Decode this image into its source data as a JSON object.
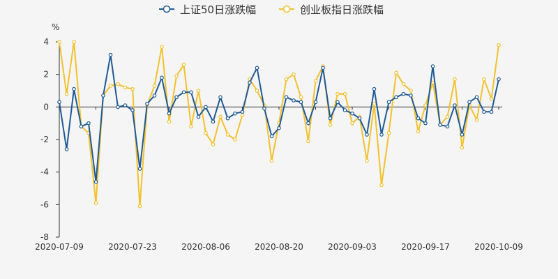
{
  "chart_data": {
    "type": "line",
    "title": "",
    "xlabel": "",
    "ylabel": "%",
    "ylim": [
      -8,
      4
    ],
    "yticks": [
      -8,
      -6,
      -4,
      -2,
      0,
      2,
      4
    ],
    "legend_position": "top-center",
    "x_tick_labels": [
      "2020-07-09",
      "2020-07-23",
      "2020-08-06",
      "2020-08-20",
      "2020-09-03",
      "2020-09-17",
      "2020-10-09"
    ],
    "x_tick_indices": [
      0,
      10,
      20,
      30,
      40,
      50,
      60
    ],
    "series": [
      {
        "name": "上证50日涨跌幅",
        "color": "#1f5a96",
        "values": [
          0.3,
          -2.6,
          1.1,
          -1.2,
          -1.0,
          -4.6,
          0.7,
          3.2,
          0.0,
          0.1,
          -0.2,
          -3.8,
          0.2,
          0.7,
          1.8,
          -0.4,
          0.6,
          0.9,
          0.9,
          -0.6,
          0.0,
          -0.9,
          0.6,
          -0.7,
          -0.4,
          -0.3,
          1.5,
          2.4,
          -0.1,
          -1.8,
          -1.3,
          0.6,
          0.4,
          0.3,
          -1.0,
          0.3,
          2.4,
          -0.7,
          0.3,
          -0.2,
          -0.4,
          -0.7,
          -1.7,
          1.1,
          -1.7,
          0.3,
          0.6,
          0.8,
          0.7,
          -0.7,
          -1.0,
          2.5,
          -1.1,
          -1.2,
          0.1,
          -1.7,
          0.3,
          0.6,
          -0.3,
          -0.3,
          1.7
        ]
      },
      {
        "name": "创业板指日涨跌幅",
        "color": "#f2c12e",
        "values": [
          4.0,
          0.8,
          4.0,
          -1.2,
          -1.6,
          -5.9,
          0.7,
          1.3,
          1.4,
          1.2,
          1.1,
          -6.1,
          0.1,
          1.3,
          3.7,
          -0.9,
          1.9,
          2.6,
          -1.2,
          1.0,
          -1.6,
          -2.3,
          -0.6,
          -1.7,
          -2.0,
          -0.5,
          1.7,
          1.0,
          0.1,
          -3.3,
          -1.0,
          1.7,
          2.0,
          0.6,
          -2.1,
          1.6,
          2.5,
          -1.1,
          0.8,
          0.8,
          -1.0,
          -0.6,
          -3.3,
          0.2,
          -4.8,
          -1.6,
          2.1,
          1.4,
          1.0,
          -1.5,
          0.1,
          1.5,
          -1.1,
          -0.6,
          1.7,
          -2.5,
          0.1,
          -0.8,
          1.7,
          0.5,
          3.8
        ]
      }
    ]
  }
}
